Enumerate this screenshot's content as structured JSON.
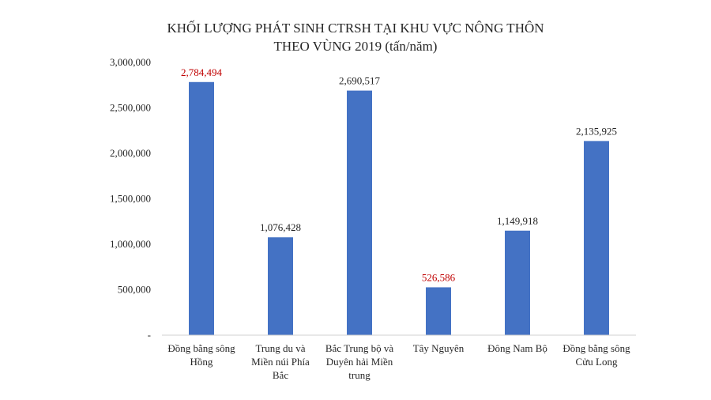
{
  "chart_data": {
    "type": "bar",
    "title_lines": [
      "KHỐI LƯỢNG PHÁT SINH CTRSH TẠI KHU VỰC NÔNG THÔN",
      "THEO VÙNG 2019 (tấn/năm)"
    ],
    "categories": [
      [
        "Đồng bằng sông",
        "Hồng"
      ],
      [
        "Trung du và",
        "Miền núi Phía",
        "Bắc"
      ],
      [
        "Bắc Trung bộ và",
        "Duyên hải Miền",
        "trung"
      ],
      [
        "Tây Nguyên"
      ],
      [
        "Đông Nam Bộ"
      ],
      [
        "Đồng bằng sông",
        "Cửu Long"
      ]
    ],
    "values": [
      2784494,
      1076428,
      2690517,
      526586,
      1149918,
      2135925
    ],
    "data_labels": [
      "2,784,494",
      "1,076,428",
      "2,690,517",
      "526,586",
      "1,149,918",
      "2,135,925"
    ],
    "highlight_indices": [
      0,
      3
    ],
    "y_ticks": [
      {
        "value": 0,
        "label": "-"
      },
      {
        "value": 500000,
        "label": "500,000"
      },
      {
        "value": 1000000,
        "label": "1,000,000"
      },
      {
        "value": 1500000,
        "label": "1,500,000"
      },
      {
        "value": 2000000,
        "label": "2,000,000"
      },
      {
        "value": 2500000,
        "label": "2,500,000"
      },
      {
        "value": 3000000,
        "label": "3,000,000"
      }
    ],
    "ylim": [
      0,
      3000000
    ],
    "grid": false,
    "legend": "none",
    "colors": {
      "bar": "#4472C4",
      "label": "#262626",
      "highlight_label": "#C00000",
      "axis": "#d0d0d0"
    }
  }
}
